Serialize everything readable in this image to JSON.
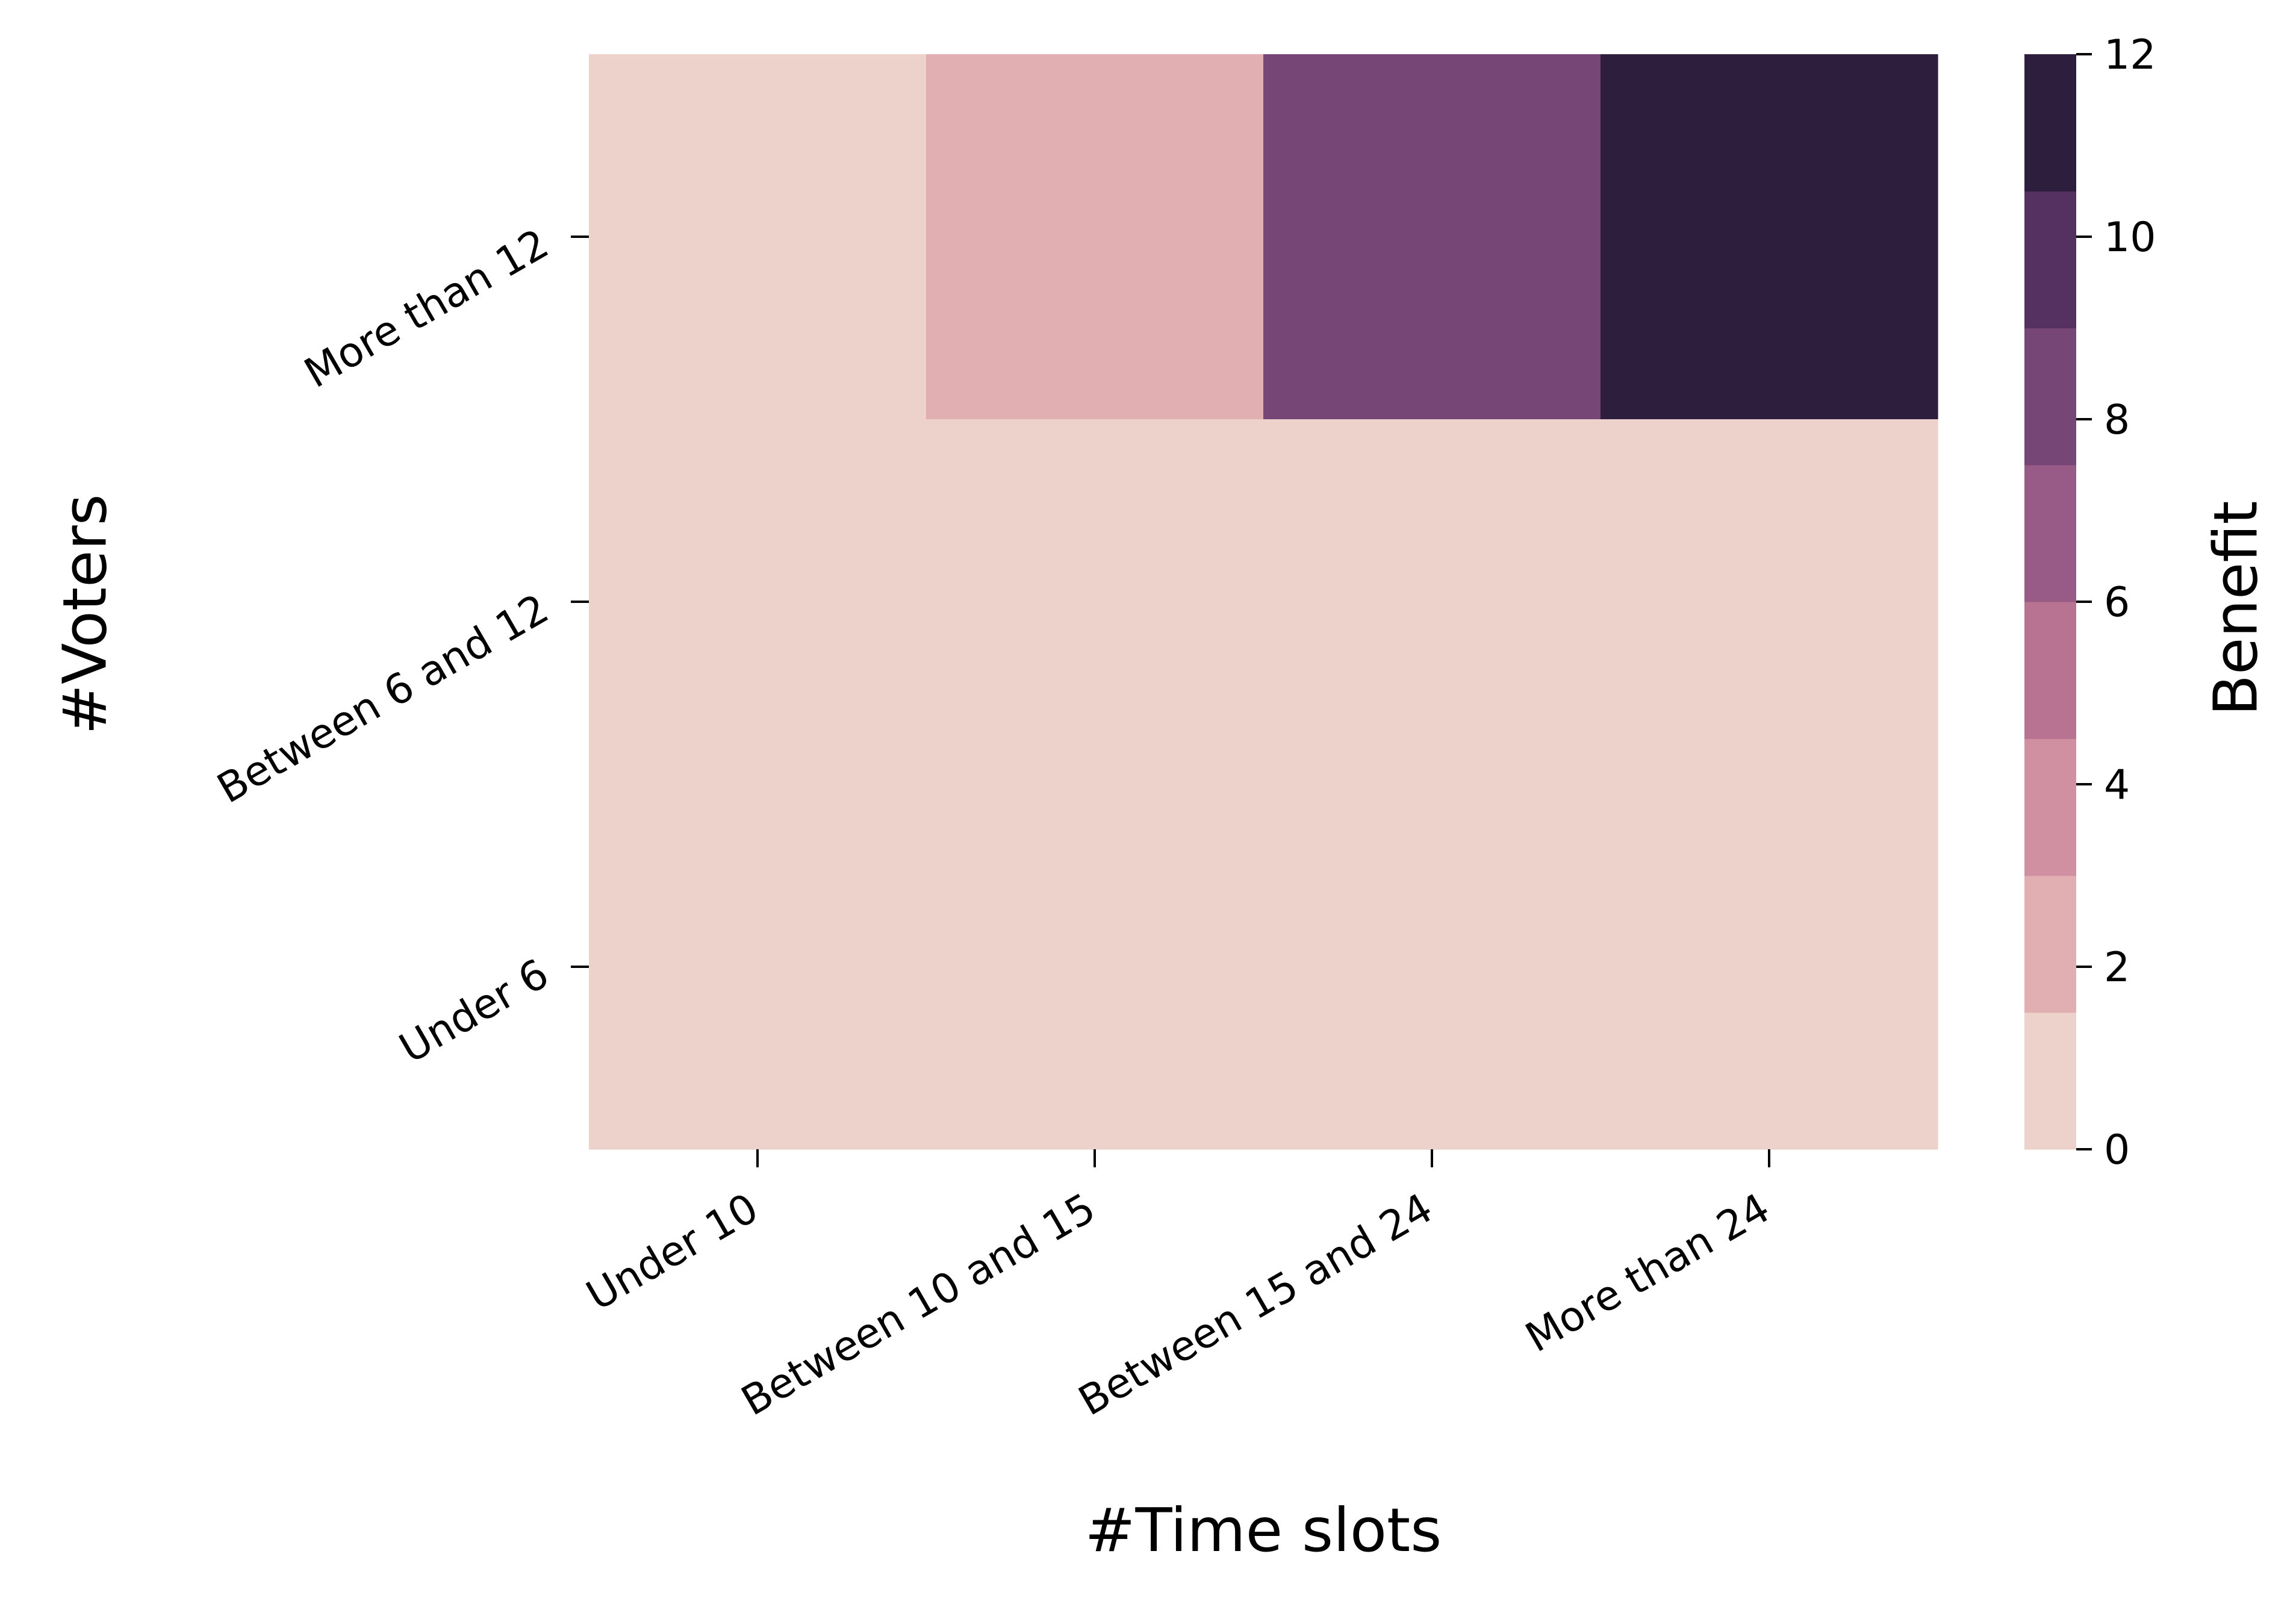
{
  "chart_data": {
    "type": "heatmap",
    "title": "",
    "xlabel": "#Time slots",
    "ylabel": "#Voters",
    "x_categories": [
      "Under 10",
      "Between 10 and 15",
      "Between 15 and 24",
      "More than 24"
    ],
    "y_categories": [
      "More than 12",
      "Between 6 and 12",
      "Under 6"
    ],
    "values": [
      [
        0,
        2,
        8,
        12
      ],
      [
        0,
        0,
        0,
        0
      ],
      [
        0,
        0,
        0,
        0
      ]
    ],
    "colorbar": {
      "label": "Benefit",
      "vmin": 0,
      "vmax": 12,
      "ticks": [
        0,
        2,
        4,
        6,
        8,
        10,
        12
      ],
      "colors": [
        "#ecd2cb",
        "#e1aeb2",
        "#d090a1",
        "#b97392",
        "#985a86",
        "#764677",
        "#553162",
        "#2d1e3e"
      ]
    },
    "grid": false
  }
}
